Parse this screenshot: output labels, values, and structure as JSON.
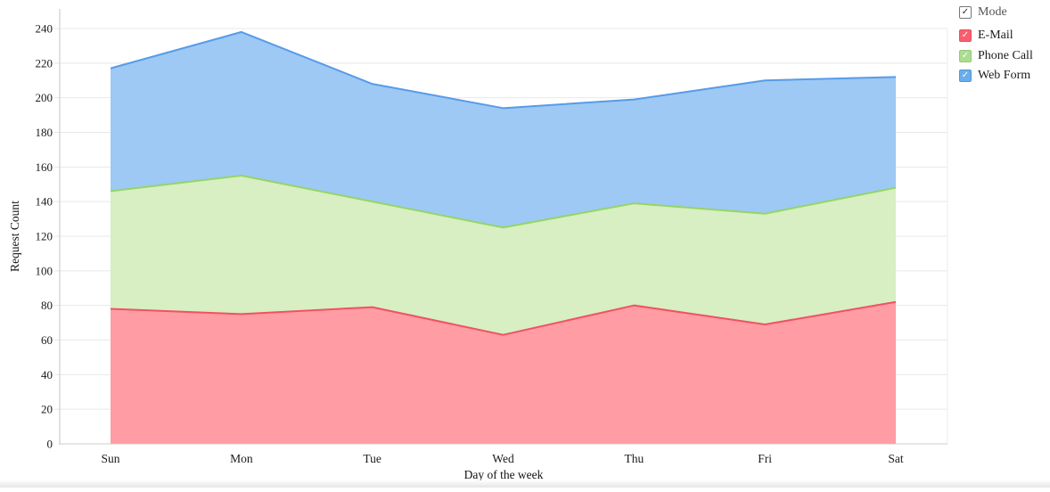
{
  "chart_data": {
    "type": "area",
    "stacked": true,
    "title": "",
    "xlabel": "Day of the week",
    "ylabel": "Request Count",
    "categories": [
      "Sun",
      "Mon",
      "Tue",
      "Wed",
      "Thu",
      "Fri",
      "Sat"
    ],
    "series": [
      {
        "name": "E-Mail",
        "values": [
          78,
          75,
          79,
          63,
          80,
          69,
          82
        ],
        "fill": "#ff9ca4",
        "stroke": "#f25162"
      },
      {
        "name": "Phone Call",
        "values": [
          68,
          80,
          61,
          62,
          59,
          64,
          66
        ],
        "fill": "#d7efc2",
        "stroke": "#97d464"
      },
      {
        "name": "Web Form",
        "values": [
          71,
          83,
          68,
          69,
          60,
          77,
          64
        ],
        "fill": "#9dc9f4",
        "stroke": "#579be9"
      }
    ],
    "stacked_totals": [
      217,
      238,
      208,
      194,
      199,
      210,
      212
    ],
    "ylim": [
      0,
      240
    ],
    "yticks": [
      0,
      20,
      40,
      60,
      80,
      100,
      120,
      140,
      160,
      180,
      200,
      220,
      240
    ],
    "grid": "horizontal",
    "legend_position": "top-right"
  },
  "legend": {
    "items": [
      {
        "key": "mode",
        "label": "Mode",
        "checked": true,
        "swatch": "#ffffff",
        "border": "#767676",
        "check": "#2b2b2b",
        "text_color": "#545454"
      },
      {
        "key": "email",
        "label": "E-Mail",
        "checked": true,
        "swatch": "#f85f6e",
        "border": "#e5505f",
        "check": "#ffffff",
        "text_color": "#1c1c1c"
      },
      {
        "key": "phone",
        "label": "Phone Call",
        "checked": true,
        "swatch": "#abdc8f",
        "border": "#94cb78",
        "check": "#ffffff",
        "text_color": "#1c1c1c"
      },
      {
        "key": "web",
        "label": "Web Form",
        "checked": true,
        "swatch": "#69adec",
        "border": "#5496d6",
        "check": "#ffffff",
        "text_color": "#1c1c1c"
      }
    ]
  },
  "colors": {
    "gridline": "#e8e8e8",
    "axis": "#c6c6c6",
    "tick_text": "#1a1a1a",
    "background": "#ffffff"
  }
}
